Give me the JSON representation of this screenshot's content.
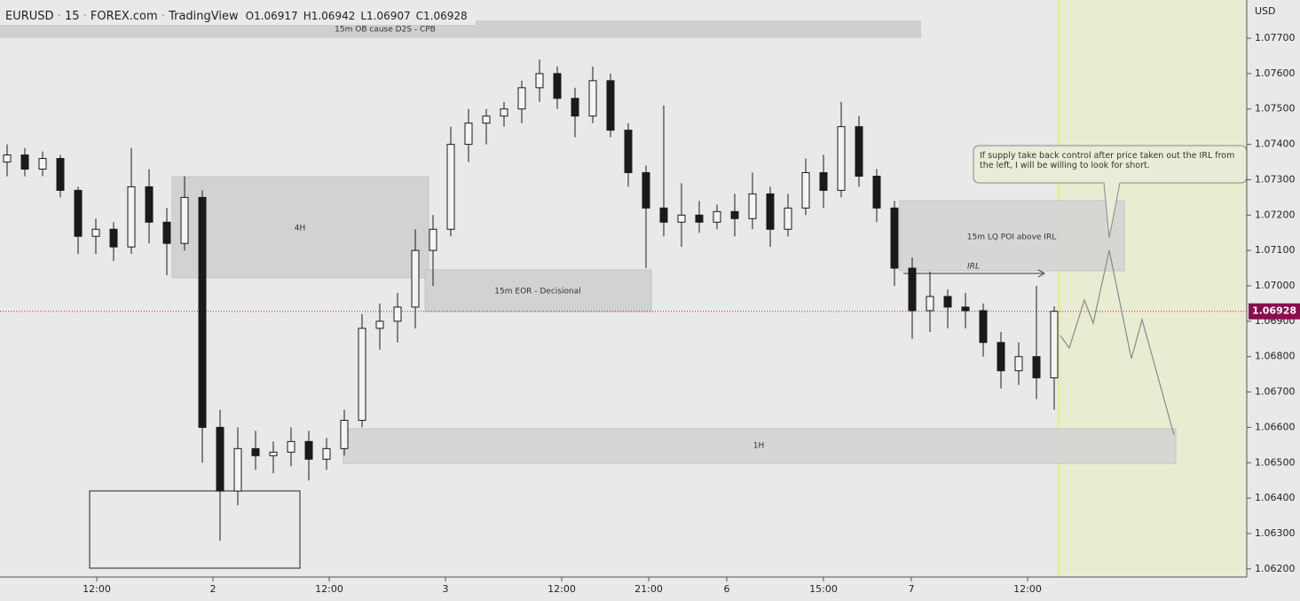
{
  "header": {
    "symbol": "EURUSD",
    "interval": "15",
    "broker": "FOREX.com",
    "source": "TradingView",
    "open": "O1.06917",
    "high": "H1.06942",
    "low": "L1.06907",
    "close": "C1.06928"
  },
  "annotations": {
    "ob": "15m OB cause D2S - CPB",
    "h4": "4H",
    "eor": "15m EOR - Decisional",
    "lq": "15m LQ POI above IRL",
    "irl": "IRL",
    "h1": "1H",
    "note": "If supply take back control after price taken out the IRL from the left, I will be willing to look for short."
  },
  "chart_data": {
    "type": "candlestick",
    "unit": "USD",
    "last_price": 1.06928,
    "ylim": [
      1.06177,
      1.07808
    ],
    "yticks": [
      {
        "value": 1.077,
        "label": "1.07700"
      },
      {
        "value": 1.076,
        "label": "1.07600"
      },
      {
        "value": 1.075,
        "label": "1.07500"
      },
      {
        "value": 1.074,
        "label": "1.07400"
      },
      {
        "value": 1.073,
        "label": "1.07300"
      },
      {
        "value": 1.072,
        "label": "1.07200"
      },
      {
        "value": 1.071,
        "label": "1.07100"
      },
      {
        "value": 1.07,
        "label": "1.07000"
      },
      {
        "value": 1.069,
        "label": "1.06900"
      },
      {
        "value": 1.068,
        "label": "1.06800"
      },
      {
        "value": 1.067,
        "label": "1.06700"
      },
      {
        "value": 1.066,
        "label": "1.06600"
      },
      {
        "value": 1.065,
        "label": "1.06500"
      },
      {
        "value": 1.064,
        "label": "1.06400"
      },
      {
        "value": 1.063,
        "label": "1.06300"
      },
      {
        "value": 1.062,
        "label": "1.06200"
      }
    ],
    "xticks": [
      "12:00",
      "2",
      "12:00",
      "3",
      "12:00",
      "21:00",
      "6",
      "15:00",
      "7",
      "12:00"
    ],
    "candles": [
      [
        1.0735,
        1.074,
        1.0731,
        1.0737
      ],
      [
        1.0737,
        1.0739,
        1.0731,
        1.0733
      ],
      [
        1.0733,
        1.0738,
        1.0731,
        1.0736
      ],
      [
        1.0736,
        1.0737,
        1.0725,
        1.0727
      ],
      [
        1.0727,
        1.0728,
        1.0709,
        1.0714
      ],
      [
        1.0714,
        1.0719,
        1.0709,
        1.0716
      ],
      [
        1.0716,
        1.0718,
        1.0707,
        1.0711
      ],
      [
        1.0711,
        1.0739,
        1.0709,
        1.0728
      ],
      [
        1.0728,
        1.0733,
        1.0712,
        1.0718
      ],
      [
        1.0718,
        1.0722,
        1.0703,
        1.0712
      ],
      [
        1.0712,
        1.0731,
        1.071,
        1.0725
      ],
      [
        1.0725,
        1.0727,
        1.065,
        1.066
      ],
      [
        1.066,
        1.0665,
        1.0628,
        1.0642
      ],
      [
        1.0642,
        1.066,
        1.0638,
        1.0654
      ],
      [
        1.0654,
        1.0659,
        1.0648,
        1.0652
      ],
      [
        1.0652,
        1.0656,
        1.0647,
        1.0653
      ],
      [
        1.0653,
        1.066,
        1.0649,
        1.0656
      ],
      [
        1.0656,
        1.0659,
        1.0645,
        1.0651
      ],
      [
        1.0651,
        1.0657,
        1.0648,
        1.0654
      ],
      [
        1.0654,
        1.0665,
        1.0652,
        1.0662
      ],
      [
        1.0662,
        1.0692,
        1.066,
        1.0688
      ],
      [
        1.0688,
        1.0695,
        1.0682,
        1.069
      ],
      [
        1.069,
        1.0698,
        1.0684,
        1.0694
      ],
      [
        1.0694,
        1.0716,
        1.0688,
        1.071
      ],
      [
        1.071,
        1.072,
        1.07,
        1.0716
      ],
      [
        1.0716,
        1.0745,
        1.0714,
        1.074
      ],
      [
        1.074,
        1.075,
        1.0735,
        1.0746
      ],
      [
        1.0746,
        1.075,
        1.074,
        1.0748
      ],
      [
        1.0748,
        1.0752,
        1.0745,
        1.075
      ],
      [
        1.075,
        1.0758,
        1.0746,
        1.0756
      ],
      [
        1.0756,
        1.0764,
        1.0752,
        1.076
      ],
      [
        1.076,
        1.0762,
        1.075,
        1.0753
      ],
      [
        1.0753,
        1.0756,
        1.0742,
        1.0748
      ],
      [
        1.0748,
        1.0762,
        1.0746,
        1.0758
      ],
      [
        1.0758,
        1.076,
        1.0742,
        1.0744
      ],
      [
        1.0744,
        1.0746,
        1.0728,
        1.0732
      ],
      [
        1.0732,
        1.0734,
        1.0705,
        1.0722
      ],
      [
        1.0722,
        1.0751,
        1.0714,
        1.0718
      ],
      [
        1.0718,
        1.0729,
        1.0711,
        1.072
      ],
      [
        1.072,
        1.0724,
        1.0715,
        1.0718
      ],
      [
        1.0718,
        1.0723,
        1.0716,
        1.0721
      ],
      [
        1.0721,
        1.0726,
        1.0714,
        1.0719
      ],
      [
        1.0719,
        1.0732,
        1.0716,
        1.0726
      ],
      [
        1.0726,
        1.0728,
        1.0711,
        1.0716
      ],
      [
        1.0716,
        1.0726,
        1.0714,
        1.0722
      ],
      [
        1.0722,
        1.0736,
        1.072,
        1.0732
      ],
      [
        1.0732,
        1.0737,
        1.0722,
        1.0727
      ],
      [
        1.0727,
        1.0752,
        1.0725,
        1.0745
      ],
      [
        1.0745,
        1.0748,
        1.0728,
        1.0731
      ],
      [
        1.0731,
        1.0733,
        1.0718,
        1.0722
      ],
      [
        1.0722,
        1.0724,
        1.07,
        1.0705
      ],
      [
        1.0705,
        1.0708,
        1.0685,
        1.0693
      ],
      [
        1.0693,
        1.0704,
        1.0687,
        1.0697
      ],
      [
        1.0697,
        1.0699,
        1.0688,
        1.0694
      ],
      [
        1.0694,
        1.0698,
        1.0688,
        1.0693
      ],
      [
        1.0693,
        1.0695,
        1.068,
        1.0684
      ],
      [
        1.0684,
        1.0687,
        1.0671,
        1.0676
      ],
      [
        1.0676,
        1.0684,
        1.0672,
        1.068
      ],
      [
        1.068,
        1.07,
        1.0668,
        1.0674
      ],
      [
        1.0674,
        1.06942,
        1.0665,
        1.06928
      ]
    ]
  }
}
